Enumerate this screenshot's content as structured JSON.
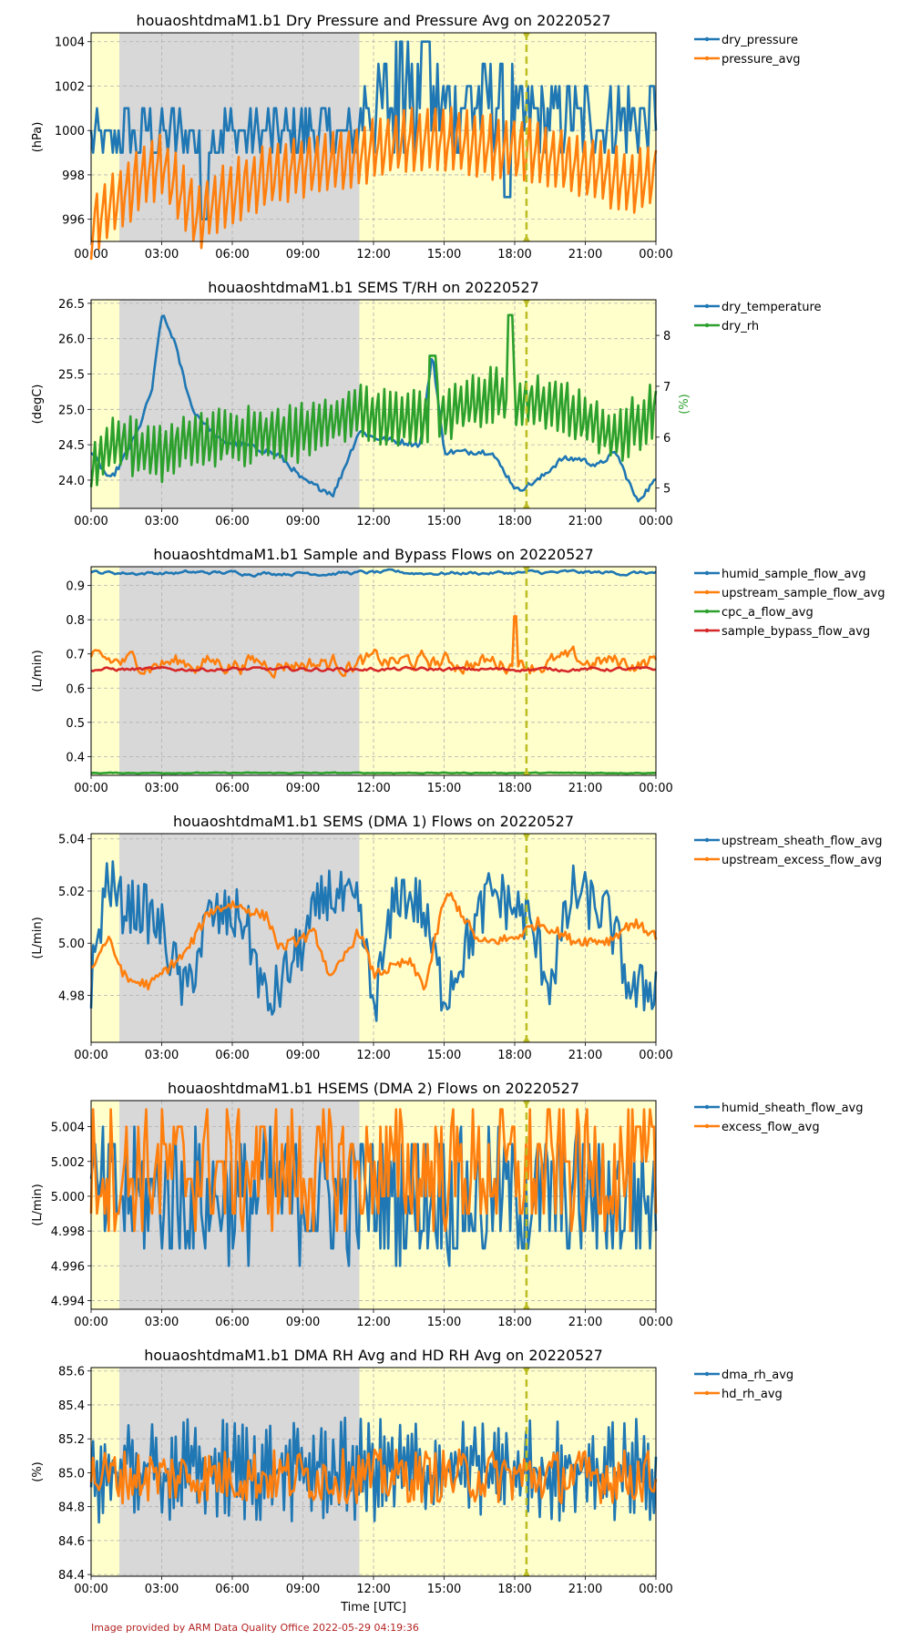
{
  "chart_data": [
    {
      "type": "line",
      "title": "houaoshtdmaM1.b1 Dry Pressure and Pressure Avg on 20220527",
      "ylabel": "(hPa)",
      "ylim": [
        995,
        1004.4
      ],
      "yticks": [
        996,
        998,
        1000,
        1002,
        1004
      ],
      "xticks": [
        "00:00",
        "03:00",
        "06:00",
        "09:00",
        "12:00",
        "15:00",
        "18:00",
        "21:00",
        "00:00"
      ],
      "legend_position": "outside-right",
      "series": [
        {
          "name": "dry_pressure",
          "color": "#1f77b4",
          "pattern": "pressure"
        },
        {
          "name": "pressure_avg",
          "color": "#ff7f0e",
          "pattern": "pressureavg"
        }
      ]
    },
    {
      "type": "line",
      "title": "houaoshtdmaM1.b1 SEMS T/RH on 20220527",
      "ylabel": "(degC)",
      "ylim": [
        23.6,
        26.55
      ],
      "yticks": [
        24.0,
        24.5,
        25.0,
        25.5,
        26.0,
        26.5
      ],
      "y2label": "(%)",
      "y2lim": [
        4.6,
        8.7
      ],
      "y2ticks": [
        5,
        6,
        7,
        8
      ],
      "xticks": [
        "00:00",
        "03:00",
        "06:00",
        "09:00",
        "12:00",
        "15:00",
        "18:00",
        "21:00",
        "00:00"
      ],
      "legend_position": "outside-right",
      "series": [
        {
          "name": "dry_temperature",
          "color": "#1f77b4",
          "pattern": "temperature"
        },
        {
          "name": "dry_rh",
          "color": "#2ca02c",
          "pattern": "rh",
          "axis": "y2"
        }
      ]
    },
    {
      "type": "line",
      "title": "houaoshtdmaM1.b1 Sample and Bypass Flows on 20220527",
      "ylabel": "(L/min)",
      "ylim": [
        0.345,
        0.955
      ],
      "yticks": [
        0.4,
        0.5,
        0.6,
        0.7,
        0.8,
        0.9
      ],
      "xticks": [
        "00:00",
        "03:00",
        "06:00",
        "09:00",
        "12:00",
        "15:00",
        "18:00",
        "21:00",
        "00:00"
      ],
      "legend_position": "outside-right",
      "series": [
        {
          "name": "humid_sample_flow_avg",
          "color": "#1f77b4",
          "pattern": "humidsample"
        },
        {
          "name": "upstream_sample_flow_avg",
          "color": "#ff7f0e",
          "pattern": "upsample"
        },
        {
          "name": "cpc_a_flow_avg",
          "color": "#2ca02c",
          "pattern": "cpc"
        },
        {
          "name": "sample_bypass_flow_avg",
          "color": "#d62728",
          "pattern": "bypass"
        }
      ]
    },
    {
      "type": "line",
      "title": "houaoshtdmaM1.b1 SEMS (DMA 1) Flows on 20220527",
      "ylabel": "(L/min)",
      "ylim": [
        4.962,
        5.042
      ],
      "yticks": [
        4.98,
        5.0,
        5.02,
        5.04
      ],
      "xticks": [
        "00:00",
        "03:00",
        "06:00",
        "09:00",
        "12:00",
        "15:00",
        "18:00",
        "21:00",
        "00:00"
      ],
      "legend_position": "outside-right",
      "series": [
        {
          "name": "upstream_sheath_flow_avg",
          "color": "#1f77b4",
          "pattern": "sheath1"
        },
        {
          "name": "upstream_excess_flow_avg",
          "color": "#ff7f0e",
          "pattern": "excess1"
        }
      ]
    },
    {
      "type": "line",
      "title": "houaoshtdmaM1.b1 HSEMS (DMA 2) Flows on 20220527",
      "ylabel": "(L/min)",
      "ylim": [
        4.9935,
        5.0055
      ],
      "yticks": [
        4.994,
        4.996,
        4.998,
        5.0,
        5.002,
        5.004
      ],
      "xticks": [
        "00:00",
        "03:00",
        "06:00",
        "09:00",
        "12:00",
        "15:00",
        "18:00",
        "21:00",
        "00:00"
      ],
      "legend_position": "outside-right",
      "series": [
        {
          "name": "humid_sheath_flow_avg",
          "color": "#1f77b4",
          "pattern": "sheath2"
        },
        {
          "name": "excess_flow_avg",
          "color": "#ff7f0e",
          "pattern": "excess2"
        }
      ]
    },
    {
      "type": "line",
      "title": "houaoshtdmaM1.b1 DMA RH Avg and HD RH Avg on 20220527",
      "ylabel": "(%)",
      "ylim": [
        84.39,
        85.62
      ],
      "yticks": [
        84.4,
        84.6,
        84.8,
        85.0,
        85.2,
        85.4,
        85.6
      ],
      "xlabel": "Time [UTC]",
      "xticks": [
        "00:00",
        "03:00",
        "06:00",
        "09:00",
        "12:00",
        "15:00",
        "18:00",
        "21:00",
        "00:00"
      ],
      "legend_position": "outside-right",
      "series": [
        {
          "name": "dma_rh_avg",
          "color": "#1f77b4",
          "pattern": "dmarh"
        },
        {
          "name": "hd_rh_avg",
          "color": "#ff7f0e",
          "pattern": "hdrh"
        }
      ]
    }
  ],
  "shading": {
    "night_color": "#d8d8d8",
    "day_color": "#ffffcc",
    "night_start_hour": 1.2,
    "night_end_hour": 11.4,
    "marker_hour": 18.5,
    "marker_color": "#bcbd22"
  },
  "footer": "Image provided by ARM Data Quality Office 2022-05-29 04:19:36"
}
